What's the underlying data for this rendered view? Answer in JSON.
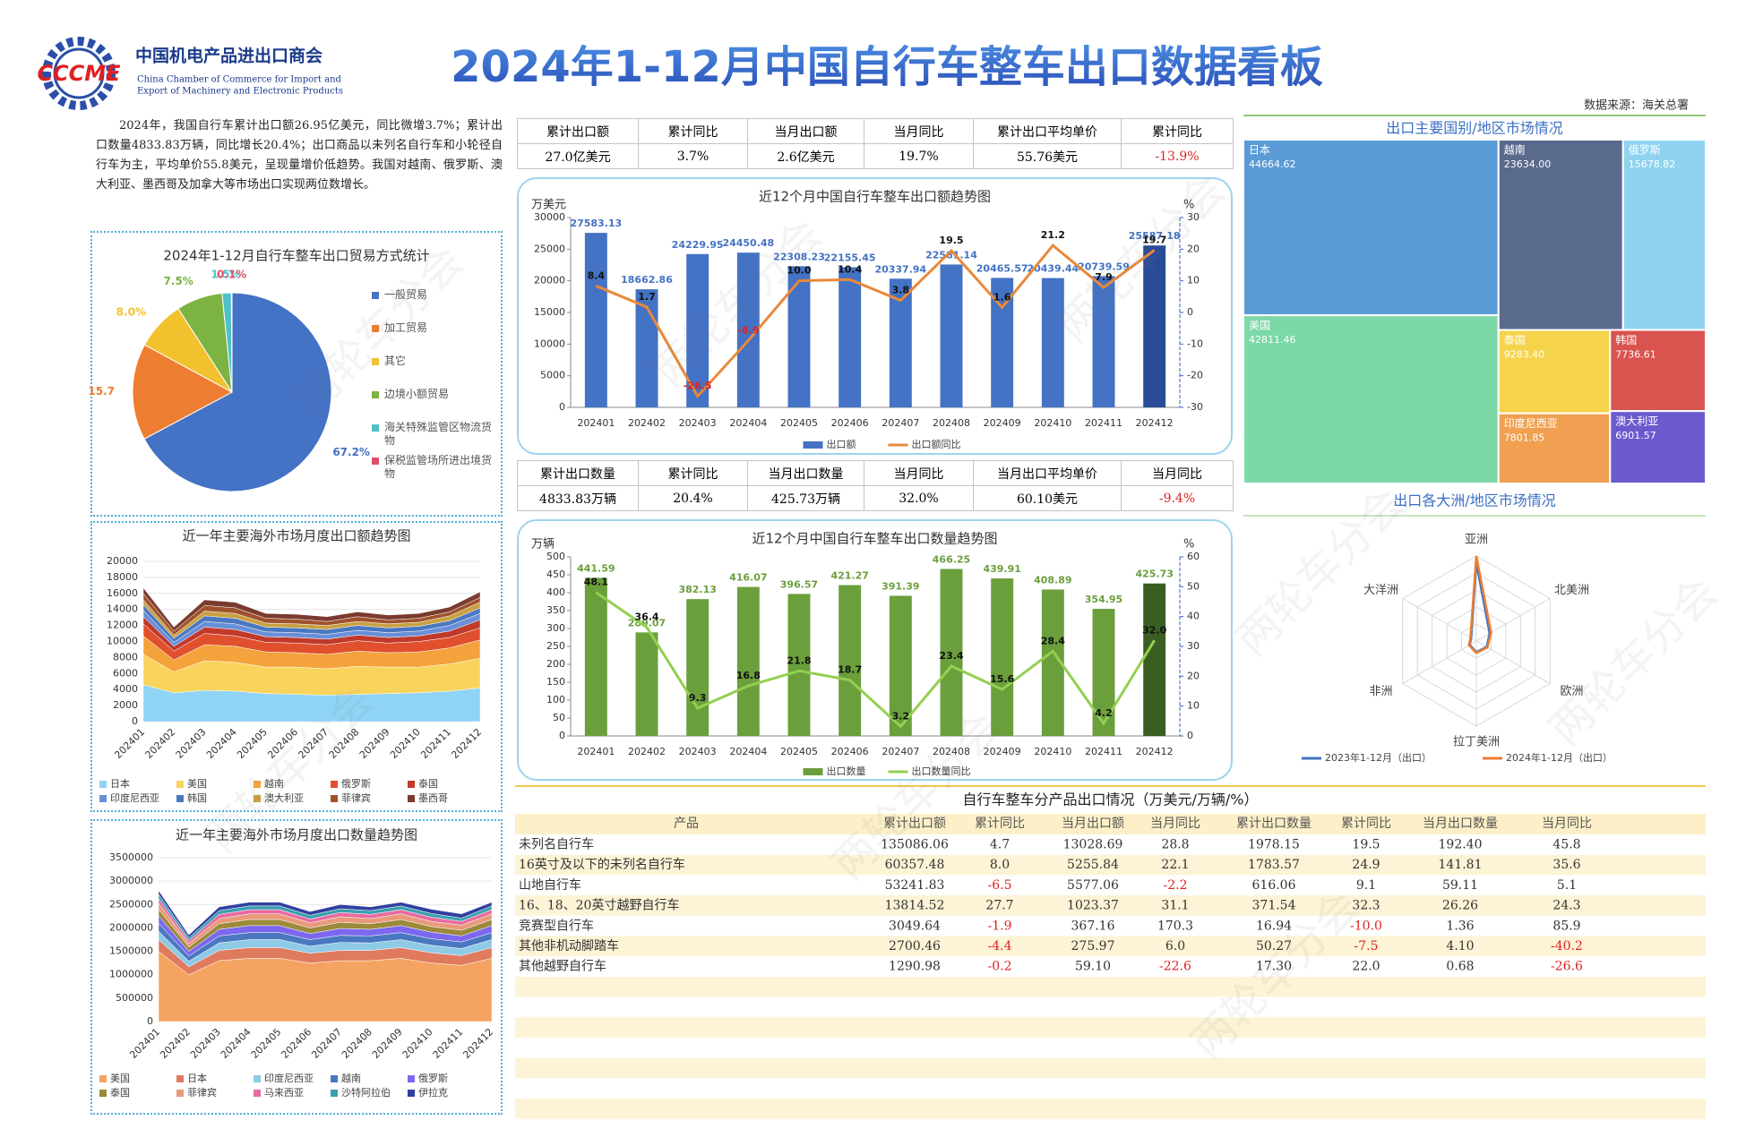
{
  "header": {
    "logo": "CCCME",
    "org": "中国机电产品进出口商会",
    "org_en": [
      "China Chamber of Commerce for Import and",
      "Export of Machinery and Electronic Products"
    ],
    "title": "2024年1-12月中国自行车整车出口数据看板",
    "source": "数据来源：海关总署"
  },
  "watermark": "两轮车分会",
  "summary": "2024年，我国自行车累计出口额26.95亿美元，同比微增3.7%；累计出口数量4833.83万辆，同比增长20.4%；出口商品以未列名自行车和小轮径自行车为主，平均单价55.8美元，呈现量增价低趋势。我国对越南、俄罗斯、澳大利亚、墨西哥及加拿大等市场出口实现两位数增长。",
  "kpi_value": {
    "headers": [
      "累计出口额",
      "累计同比",
      "当月出口额",
      "当月同比",
      "累计出口平均单价",
      "累计同比"
    ],
    "values": [
      "27.0亿美元",
      "3.7%",
      "2.6亿美元",
      "19.7%",
      "55.76美元",
      "-13.9%"
    ]
  },
  "kpi_volume": {
    "headers": [
      "累计出口数量",
      "累计同比",
      "当月出口数量",
      "当月同比",
      "当月出口平均单价",
      "当月同比"
    ],
    "values": [
      "4833.83万辆",
      "20.4%",
      "425.73万辆",
      "32.0%",
      "60.10美元",
      "-9.4%"
    ]
  },
  "product_table": {
    "title": "自行车整车分产品出口情况（万美元/万辆/%）",
    "headers": [
      "产品",
      "累计出口额",
      "累计同比",
      "当月出口额",
      "当月同比",
      "累计出口数量",
      "累计同比",
      "当月出口数量",
      "当月同比"
    ],
    "rows": [
      [
        "未列名自行车",
        "135086.06",
        "4.7",
        "13028.69",
        "28.8",
        "1978.15",
        "19.5",
        "192.40",
        "45.8"
      ],
      [
        "16英寸及以下的未列名自行车",
        "60357.48",
        "8.0",
        "5255.84",
        "22.1",
        "1783.57",
        "24.9",
        "141.81",
        "35.6"
      ],
      [
        "山地自行车",
        "53241.83",
        "-6.5",
        "5577.06",
        "-2.2",
        "616.06",
        "9.1",
        "59.11",
        "5.1"
      ],
      [
        "16、18、20英寸越野自行车",
        "13814.52",
        "27.7",
        "1023.37",
        "31.1",
        "371.54",
        "32.3",
        "26.26",
        "24.3"
      ],
      [
        "竞赛型自行车",
        "3049.64",
        "-1.9",
        "367.16",
        "170.3",
        "16.94",
        "-10.0",
        "1.36",
        "85.9"
      ],
      [
        "其他非机动脚踏车",
        "2700.46",
        "-4.4",
        "275.97",
        "6.0",
        "50.27",
        "-7.5",
        "4.10",
        "-40.2"
      ],
      [
        "其他越野自行车",
        "1290.98",
        "-0.2",
        "59.10",
        "-22.6",
        "17.30",
        "22.0",
        "0.68",
        "-26.6"
      ]
    ]
  },
  "chart_data": [
    {
      "type": "pie",
      "title": "2024年1-12月自行车整车出口贸易方式统计",
      "categories": [
        "一般贸易",
        "加工贸易",
        "其它",
        "边境小额贸易",
        "海关特殊监管区物流货物",
        "保税监管场所进出境货物"
      ],
      "values": [
        67.2,
        15.7,
        8.0,
        7.5,
        1.5,
        0.1
      ],
      "value_labels": [
        "67.2%",
        "15.7",
        "8.0%",
        "7.5%",
        "1.5%",
        "0.1%"
      ],
      "colors": [
        "#4472c4",
        "#ed7d31",
        "#f2c12e",
        "#7cb342",
        "#4fc1c9",
        "#e0506a"
      ],
      "legend": "right"
    },
    {
      "type": "combo",
      "title": "近12个月中国自行车整车出口额趋势图",
      "y_label": "万美元",
      "y2_label": "%",
      "categories": [
        "202401",
        "202402",
        "202403",
        "202404",
        "202405",
        "202406",
        "202407",
        "202408",
        "202409",
        "202410",
        "202411",
        "202412"
      ],
      "series": [
        {
          "name": "出口额",
          "color": "#4472c4",
          "colors": [
            "#4472c4",
            "#4472c4",
            "#4472c4",
            "#4472c4",
            "#4472c4",
            "#4472c4",
            "#4472c4",
            "#4472c4",
            "#4472c4",
            "#4472c4",
            "#4472c4",
            "#2a4c98"
          ],
          "values": [
            27583.13,
            18662.86,
            24229.95,
            24450.48,
            22308.23,
            22155.45,
            20337.94,
            22581.14,
            20465.57,
            20439.44,
            20739.59,
            25587.18
          ]
        },
        {
          "name": "出口额同比",
          "color": "#e8893a",
          "axis": "y2",
          "values": [
            8.4,
            1.7,
            -26.5,
            -8.9,
            10.0,
            10.4,
            3.8,
            19.5,
            1.6,
            21.2,
            7.9,
            19.7
          ],
          "value_labels": [
            "8.4",
            "1.7",
            "-26.5",
            "-8.9",
            "10.0",
            "10.4",
            "3.8",
            "19.5",
            "1.6",
            "21.2",
            "7.9",
            "19.7"
          ]
        }
      ],
      "ylim": [
        0,
        30000
      ],
      "yticks": [
        0,
        5000,
        10000,
        15000,
        20000,
        25000,
        30000
      ],
      "y2lim": [
        -30,
        30
      ],
      "y2ticks": [
        -30,
        -20,
        -10,
        0,
        10,
        20,
        30
      ],
      "legend": "bottom"
    },
    {
      "type": "combo",
      "title": "近12个月中国自行车整车出口数量趋势图",
      "y_label": "万辆",
      "y2_label": "%",
      "categories": [
        "202401",
        "202402",
        "202403",
        "202404",
        "202405",
        "202406",
        "202407",
        "202408",
        "202409",
        "202410",
        "202411",
        "202412"
      ],
      "series": [
        {
          "name": "出口数量",
          "color": "#6a9f3c",
          "colors": [
            "#6a9f3c",
            "#6a9f3c",
            "#6a9f3c",
            "#6a9f3c",
            "#6a9f3c",
            "#6a9f3c",
            "#6a9f3c",
            "#6a9f3c",
            "#6a9f3c",
            "#6a9f3c",
            "#6a9f3c",
            "#3a5e22"
          ],
          "values": [
            441.59,
            289.07,
            382.13,
            416.07,
            396.57,
            421.27,
            391.39,
            466.25,
            439.91,
            408.89,
            354.95,
            425.73
          ]
        },
        {
          "name": "出口数量同比",
          "color": "#92d050",
          "axis": "y2",
          "values": [
            48.1,
            36.4,
            9.3,
            16.8,
            21.8,
            18.7,
            3.2,
            23.4,
            15.6,
            28.4,
            4.2,
            32.0
          ],
          "value_labels": [
            "48.1",
            "36.4",
            "9.3",
            "16.8",
            "21.8",
            "18.7",
            "3.2",
            "23.4",
            "15.6",
            "28.4",
            "4.2",
            "32.0"
          ]
        }
      ],
      "ylim": [
        0,
        500
      ],
      "yticks": [
        0,
        50,
        100,
        150,
        200,
        250,
        300,
        350,
        400,
        450,
        500
      ],
      "y2lim": [
        0,
        60
      ],
      "y2ticks": [
        0,
        10,
        20,
        30,
        40,
        50,
        60
      ],
      "legend": "bottom"
    },
    {
      "type": "area",
      "title": "近一年主要海外市场月度出口额趋势图",
      "stacked": true,
      "categories": [
        "202401",
        "202402",
        "202403",
        "202404",
        "202405",
        "202406",
        "202407",
        "202408",
        "202409",
        "202410",
        "202411",
        "202412"
      ],
      "series": [
        {
          "name": "日本",
          "color": "#8fd3f5",
          "values": [
            4600,
            3600,
            3900,
            3800,
            3500,
            3400,
            3300,
            3400,
            3500,
            3600,
            3800,
            4200
          ]
        },
        {
          "name": "美国",
          "color": "#f9d45c",
          "values": [
            3800,
            2600,
            3700,
            3600,
            3300,
            3400,
            3300,
            3500,
            3300,
            3200,
            3400,
            3700
          ]
        },
        {
          "name": "越南",
          "color": "#f4a23c",
          "values": [
            2300,
            1500,
            2000,
            2000,
            1900,
            1800,
            1800,
            1900,
            1800,
            1900,
            2000,
            2300
          ]
        },
        {
          "name": "俄罗斯",
          "color": "#e0502c",
          "values": [
            1500,
            1100,
            1400,
            1300,
            1200,
            1200,
            1200,
            1300,
            1200,
            1300,
            1300,
            1500
          ]
        },
        {
          "name": "泰国",
          "color": "#c0392b",
          "values": [
            900,
            600,
            800,
            800,
            700,
            700,
            700,
            700,
            700,
            700,
            800,
            1000
          ]
        },
        {
          "name": "印度尼西亚",
          "color": "#6a8fd8",
          "values": [
            800,
            500,
            700,
            700,
            600,
            600,
            600,
            600,
            600,
            600,
            700,
            800
          ]
        },
        {
          "name": "韩国",
          "color": "#4a78c0",
          "values": [
            700,
            500,
            700,
            700,
            600,
            600,
            600,
            600,
            600,
            600,
            600,
            700
          ]
        },
        {
          "name": "澳大利亚",
          "color": "#c8a040",
          "values": [
            600,
            400,
            600,
            600,
            500,
            500,
            500,
            500,
            500,
            500,
            600,
            700
          ]
        },
        {
          "name": "菲律宾",
          "color": "#a0522d",
          "values": [
            800,
            500,
            700,
            700,
            600,
            600,
            500,
            600,
            500,
            500,
            500,
            600
          ]
        },
        {
          "name": "墨西哥",
          "color": "#7a3b2e",
          "values": [
            700,
            500,
            700,
            700,
            600,
            600,
            600,
            600,
            600,
            600,
            600,
            700
          ]
        }
      ],
      "ylim": [
        0,
        20000
      ],
      "yticks": [
        0,
        2000,
        4000,
        6000,
        8000,
        10000,
        12000,
        14000,
        16000,
        18000,
        20000
      ],
      "legend": "bottom"
    },
    {
      "type": "area",
      "title": "近一年主要海外市场月度出口数量趋势图",
      "stacked": true,
      "categories": [
        "202401",
        "202402",
        "202403",
        "202404",
        "202405",
        "202406",
        "202407",
        "202408",
        "202409",
        "202410",
        "202411",
        "202412"
      ],
      "series": [
        {
          "name": "美国",
          "color": "#f4a460",
          "values": [
            1500000,
            1000000,
            1300000,
            1350000,
            1350000,
            1250000,
            1300000,
            1300000,
            1350000,
            1250000,
            1200000,
            1350000
          ]
        },
        {
          "name": "日本",
          "color": "#e07a5f",
          "values": [
            250000,
            170000,
            220000,
            230000,
            230000,
            210000,
            220000,
            220000,
            230000,
            220000,
            210000,
            230000
          ]
        },
        {
          "name": "印度尼西亚",
          "color": "#8ecae6",
          "values": [
            180000,
            120000,
            160000,
            170000,
            170000,
            150000,
            170000,
            160000,
            170000,
            160000,
            150000,
            170000
          ]
        },
        {
          "name": "越南",
          "color": "#4a78c0",
          "values": [
            170000,
            110000,
            150000,
            150000,
            150000,
            140000,
            150000,
            150000,
            150000,
            140000,
            140000,
            150000
          ]
        },
        {
          "name": "俄罗斯",
          "color": "#7b68ee",
          "values": [
            160000,
            100000,
            140000,
            150000,
            150000,
            130000,
            150000,
            140000,
            150000,
            140000,
            130000,
            150000
          ]
        },
        {
          "name": "泰国",
          "color": "#9a8a3a",
          "values": [
            140000,
            90000,
            120000,
            130000,
            130000,
            120000,
            130000,
            120000,
            130000,
            120000,
            120000,
            130000
          ]
        },
        {
          "name": "菲律宾",
          "color": "#e89a7a",
          "values": [
            130000,
            80000,
            110000,
            120000,
            120000,
            110000,
            120000,
            110000,
            120000,
            110000,
            110000,
            120000
          ]
        },
        {
          "name": "马来西亚",
          "color": "#e86aa0",
          "values": [
            100000,
            60000,
            90000,
            90000,
            90000,
            80000,
            90000,
            90000,
            90000,
            90000,
            80000,
            90000
          ]
        },
        {
          "name": "沙特阿拉伯",
          "color": "#3aa0b0",
          "values": [
            90000,
            60000,
            80000,
            80000,
            80000,
            80000,
            80000,
            80000,
            80000,
            80000,
            70000,
            80000
          ]
        },
        {
          "name": "伊拉克",
          "color": "#3040a0",
          "values": [
            80000,
            60000,
            80000,
            80000,
            80000,
            80000,
            90000,
            80000,
            80000,
            90000,
            90000,
            80000
          ]
        }
      ],
      "ylim": [
        0,
        3500000
      ],
      "yticks": [
        0,
        500000,
        1000000,
        1500000,
        2000000,
        2500000,
        3000000,
        3500000
      ],
      "legend": "bottom"
    },
    {
      "type": "treemap",
      "title": "出口主要国别/地区市场情况",
      "categories": [
        "日本",
        "美国",
        "越南",
        "俄罗斯",
        "泰国",
        "印度尼西亚",
        "韩国",
        "澳大利亚"
      ],
      "values": [
        44664.62,
        42811.46,
        23634.0,
        15678.82,
        9283.4,
        7801.85,
        7736.61,
        6901.57
      ],
      "value_labels": [
        "44664.62",
        "42811.46",
        "23634.00",
        "15678.82",
        "9283.40",
        "7801.85",
        "7736.61",
        "6901.57"
      ],
      "colors": [
        "#5b9bd5",
        "#7dd8a8",
        "#5a6a8c",
        "#8fd3f0",
        "#f5d44c",
        "#f0a050",
        "#d9534f",
        "#6a5acd"
      ]
    },
    {
      "type": "radar",
      "title": "出口各大洲/地区市场情况",
      "categories": [
        "亚洲",
        "北美洲",
        "欧洲",
        "拉丁美洲",
        "非洲",
        "大洋洲"
      ],
      "series": [
        {
          "name": "2023年1-12月（出口）",
          "color": "#4472c4",
          "values": [
            92,
            18,
            14,
            13,
            9,
            7
          ]
        },
        {
          "name": "2024年1-12月（出口）",
          "color": "#ed7d31",
          "values": [
            100,
            20,
            15,
            14,
            10,
            8
          ]
        }
      ],
      "rlim": [
        0,
        100
      ],
      "legend": "bottom"
    }
  ]
}
